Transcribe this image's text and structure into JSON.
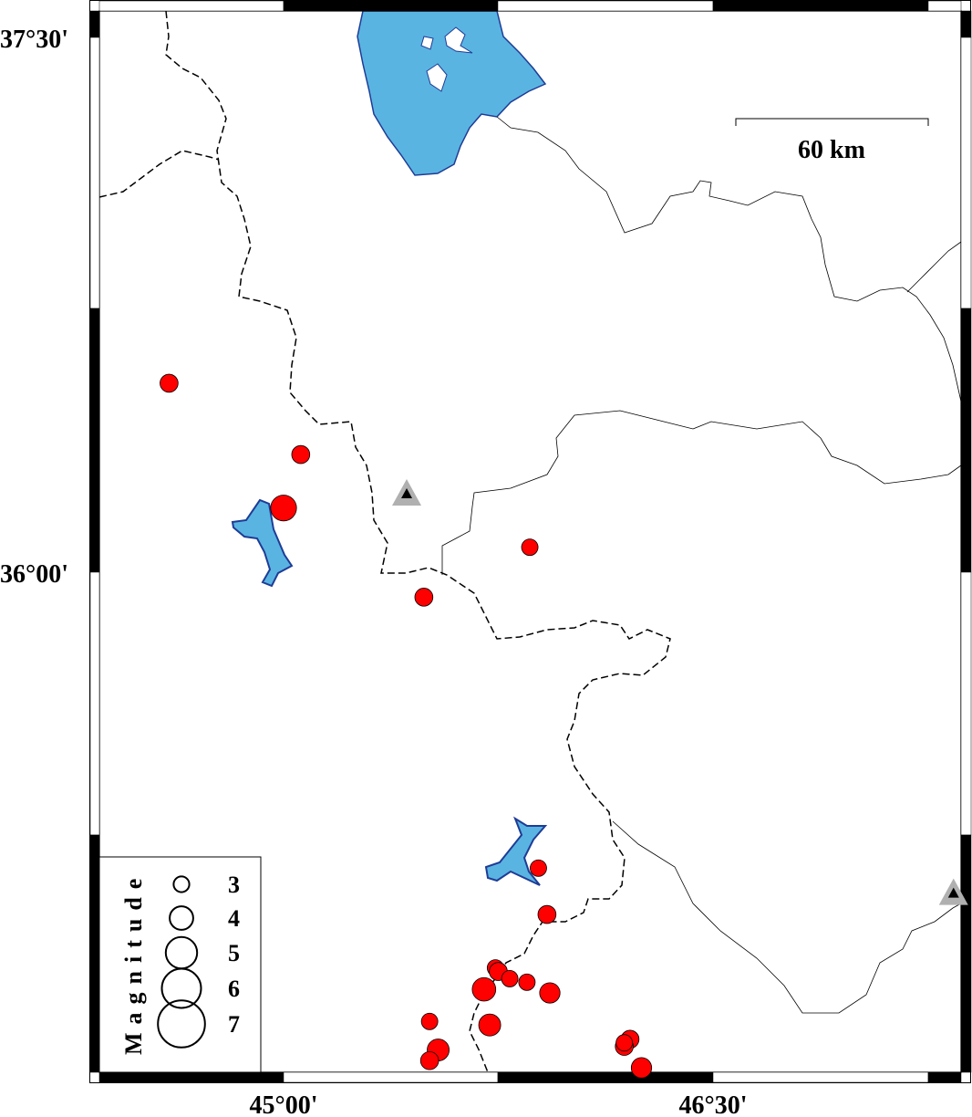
{
  "map": {
    "lon_range": [
      44.74,
      47.75
    ],
    "lat_range": [
      34.62,
      37.6
    ],
    "x_tick_labels": [
      {
        "lon": 45.0,
        "text": "45°00'"
      },
      {
        "lon": 46.5,
        "text": "46°30'"
      }
    ],
    "y_tick_labels": [
      {
        "lat": 37.5,
        "text": "37°30'"
      },
      {
        "lat": 36.0,
        "text": "36°00'"
      }
    ],
    "scale_bar": {
      "label": "60 km",
      "length_km": 60
    },
    "colors": {
      "water": "#5ab4e2",
      "water_outline": "#1e3c96",
      "event": "#ff0000",
      "station": "#b0b0b0"
    }
  },
  "legend": {
    "title": "Magnitude",
    "entries": [
      {
        "mag": 3,
        "label": "3"
      },
      {
        "mag": 4,
        "label": "4"
      },
      {
        "mag": 5,
        "label": "5"
      },
      {
        "mag": 6,
        "label": "6"
      },
      {
        "mag": 7,
        "label": "7"
      }
    ]
  },
  "events": [
    {
      "lon": 44.6,
      "lat": 36.53,
      "mag": 3.3
    },
    {
      "lon": 45.06,
      "lat": 36.33,
      "mag": 3.3
    },
    {
      "lon": 45.0,
      "lat": 36.18,
      "mag": 4.3
    },
    {
      "lon": 45.86,
      "lat": 36.07,
      "mag": 3.1
    },
    {
      "lon": 45.49,
      "lat": 35.93,
      "mag": 3.3
    },
    {
      "lon": 45.89,
      "lat": 35.17,
      "mag": 3.1
    },
    {
      "lon": 45.92,
      "lat": 35.04,
      "mag": 3.3
    },
    {
      "lon": 45.74,
      "lat": 34.89,
      "mag": 3.1
    },
    {
      "lon": 45.75,
      "lat": 34.88,
      "mag": 3.3
    },
    {
      "lon": 45.79,
      "lat": 34.86,
      "mag": 3.1
    },
    {
      "lon": 45.85,
      "lat": 34.85,
      "mag": 3.1
    },
    {
      "lon": 45.7,
      "lat": 34.83,
      "mag": 4.0
    },
    {
      "lon": 45.93,
      "lat": 34.82,
      "mag": 3.6
    },
    {
      "lon": 45.51,
      "lat": 34.74,
      "mag": 3.1
    },
    {
      "lon": 45.72,
      "lat": 34.73,
      "mag": 3.8
    },
    {
      "lon": 45.54,
      "lat": 34.66,
      "mag": 3.8
    },
    {
      "lon": 45.51,
      "lat": 34.63,
      "mag": 3.3
    },
    {
      "lon": 46.21,
      "lat": 34.69,
      "mag": 3.3
    },
    {
      "lon": 46.19,
      "lat": 34.67,
      "mag": 3.3
    },
    {
      "lon": 46.19,
      "lat": 34.68,
      "mag": 3.1
    },
    {
      "lon": 46.25,
      "lat": 34.61,
      "mag": 3.6
    }
  ],
  "stations": [
    {
      "lon": 45.43,
      "lat": 36.22
    },
    {
      "lon": 47.34,
      "lat": 35.1
    }
  ]
}
